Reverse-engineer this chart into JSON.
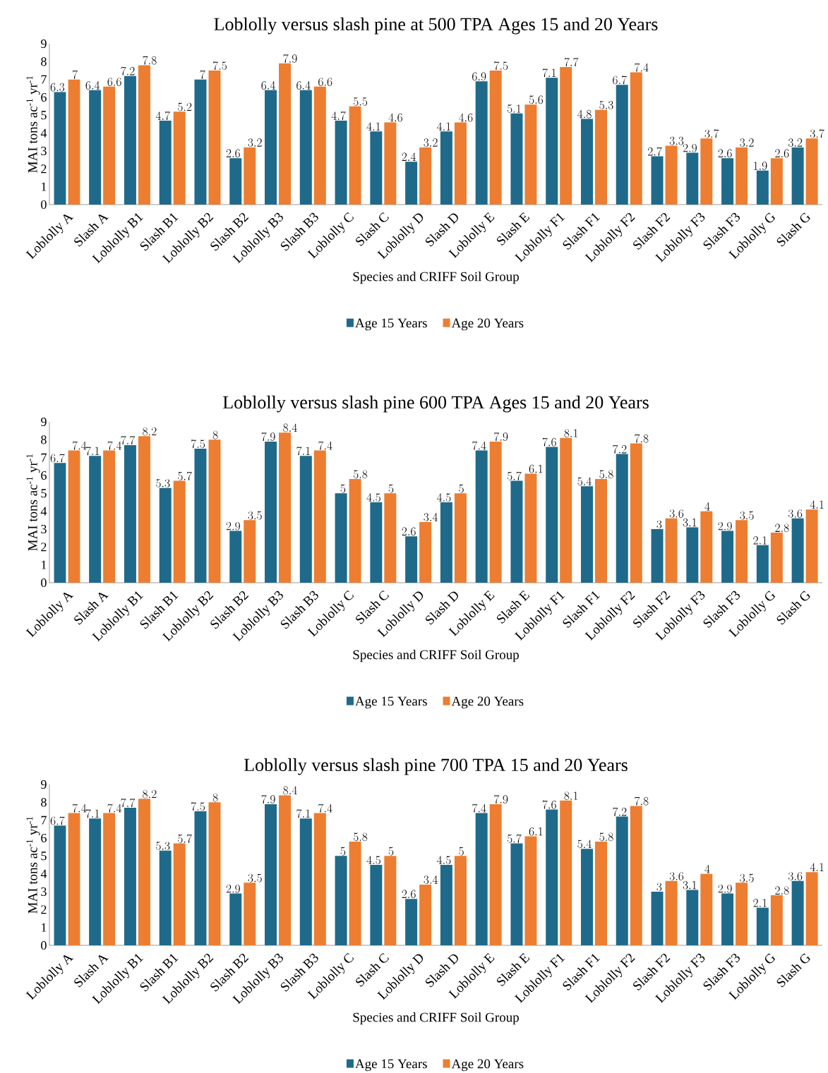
{
  "chart_data": [
    {
      "type": "bar",
      "title": "Loblolly versus slash pine at 500 TPA Ages 15 and 20 Years",
      "xlabel": "Species and CRIFF Soil Group",
      "ylabel": "MAI tons ac$^{-1}$ yr$^{-1}$",
      "categories": [
        "Loblolly A",
        "Slash A",
        "Loblolly B1",
        "Slash B1",
        "Loblolly B2",
        "Slash B2",
        "Loblolly B3",
        "Slash B3",
        "Loblolly C",
        "Slash C",
        "Loblolly D",
        "Slash D",
        "Loblolly E",
        "Slash E",
        "Loblolly F1",
        "Slash F1",
        "Loblolly F2",
        "Slash F2",
        "Loblolly F3",
        "Slash F3",
        "Loblolly G",
        "Slash G"
      ],
      "series": [
        {
          "name": "Age 15 Years",
          "color": "#1f6a8a",
          "values": [
            6.3,
            6.4,
            7.2,
            4.7,
            7,
            2.6,
            6.4,
            6.4,
            4.7,
            4.1,
            2.4,
            4.1,
            6.9,
            5.1,
            7.1,
            4.8,
            6.7,
            2.7,
            2.9,
            2.6,
            1.9,
            3.2
          ]
        },
        {
          "name": "Age 20 Years",
          "color": "#ed7d31",
          "values": [
            7,
            6.6,
            7.8,
            5.2,
            7.5,
            3.2,
            7.9,
            6.6,
            5.5,
            4.6,
            3.2,
            4.6,
            7.5,
            5.6,
            7.7,
            5.3,
            7.4,
            3.3,
            3.7,
            3.2,
            2.6,
            3.7
          ]
        }
      ],
      "ylim": [
        0,
        9
      ],
      "yticks": [
        0,
        1,
        2,
        3,
        4,
        5,
        6,
        7,
        8,
        9
      ],
      "data_labels": true,
      "legend": "bottom",
      "grid": false
    },
    {
      "type": "bar",
      "title": "Loblolly versus slash pine 600 TPA Ages 15 and 20 Years",
      "xlabel": "Species and CRIFF Soil Group",
      "ylabel": "MAI tons ac$^{-1}$ yr$^{-1}$",
      "categories": [
        "Loblolly A",
        "Slash A",
        "Loblolly B1",
        "Slash B1",
        "Loblolly B2",
        "Slash B2",
        "Loblolly B3",
        "Slash B3",
        "Loblolly C",
        "Slash C",
        "Loblolly D",
        "Slash D",
        "Loblolly E",
        "Slash E",
        "Loblolly F1",
        "Slash F1",
        "Loblolly F2",
        "Slash F2",
        "Loblolly F3",
        "Slash F3",
        "Loblolly G",
        "Slash G"
      ],
      "series": [
        {
          "name": "Age 15 Years",
          "color": "#1f6a8a",
          "values": [
            6.7,
            7.1,
            7.7,
            5.3,
            7.5,
            2.9,
            7.9,
            7.1,
            5,
            4.5,
            2.6,
            4.5,
            7.4,
            5.7,
            7.6,
            5.4,
            7.2,
            3,
            3.1,
            2.9,
            2.1,
            3.6
          ]
        },
        {
          "name": "Age 20 Years",
          "color": "#ed7d31",
          "values": [
            7.4,
            7.4,
            8.2,
            5.7,
            8,
            3.5,
            8.4,
            7.4,
            5.8,
            5,
            3.4,
            5,
            7.9,
            6.1,
            8.1,
            5.8,
            7.8,
            3.6,
            4,
            3.5,
            2.8,
            4.1
          ]
        }
      ],
      "ylim": [
        0,
        9
      ],
      "yticks": [
        0,
        1,
        2,
        3,
        4,
        5,
        6,
        7,
        8,
        9
      ],
      "data_labels": true,
      "legend": "bottom",
      "grid": false
    },
    {
      "type": "bar",
      "title": "Loblolly versus slash pine 700 TPA 15 and 20 Years",
      "xlabel": "Species and CRIFF Soil Group",
      "ylabel": "MAI tons ac$^{-1}$ yr$^{-1}$",
      "categories": [
        "Loblolly A",
        "Slash A",
        "Loblolly B1",
        "Slash B1",
        "Loblolly B2",
        "Slash B2",
        "Loblolly B3",
        "Slash B3",
        "Loblolly C",
        "Slash C",
        "Loblolly D",
        "Slash D",
        "Loblolly E",
        "Slash E",
        "Loblolly F1",
        "Slash F1",
        "Loblolly F2",
        "Slash F2",
        "Loblolly F3",
        "Slash F3",
        "Loblolly G",
        "Slash G"
      ],
      "series": [
        {
          "name": "Age 15 Years",
          "color": "#1f6a8a",
          "values": [
            6.7,
            7.1,
            7.7,
            5.3,
            7.5,
            2.9,
            7.9,
            7.1,
            5,
            4.5,
            2.6,
            4.5,
            7.4,
            5.7,
            7.6,
            5.4,
            7.2,
            3,
            3.1,
            2.9,
            2.1,
            3.6
          ]
        },
        {
          "name": "Age 20 Years",
          "color": "#ed7d31",
          "values": [
            7.4,
            7.4,
            8.2,
            5.7,
            8,
            3.5,
            8.4,
            7.4,
            5.8,
            5,
            3.4,
            5,
            7.9,
            6.1,
            8.1,
            5.8,
            7.8,
            3.6,
            4,
            3.5,
            2.8,
            4.1
          ]
        }
      ],
      "ylim": [
        0,
        9
      ],
      "yticks": [
        0,
        1,
        2,
        3,
        4,
        5,
        6,
        7,
        8,
        9
      ],
      "data_labels": true,
      "legend": "bottom",
      "grid": false
    }
  ]
}
